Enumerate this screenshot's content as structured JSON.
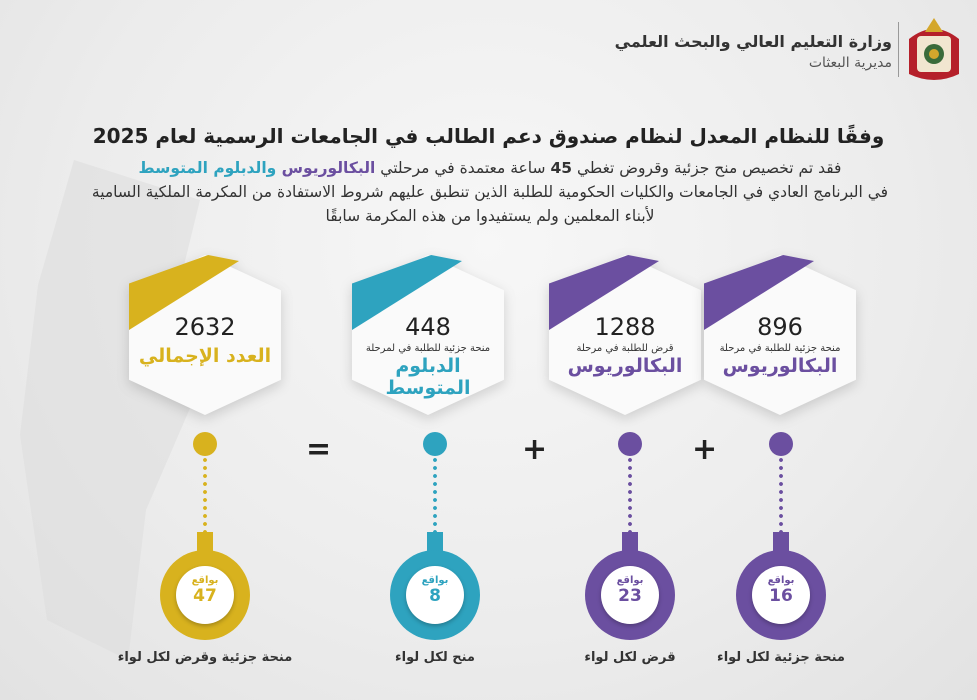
{
  "colors": {
    "gold": "#d8b21e",
    "teal": "#2ea3bf",
    "purple": "#6b4fa0"
  },
  "header": {
    "ministry": "وزارة التعليم العالي والبحث العلمي",
    "directorate": "مديرية البعثات",
    "logo": "Jordan coat of arms"
  },
  "title": "وفقًا للنظام المعدل لنظام صندوق دعم الطالب في الجامعات الرسمية لعام 2025",
  "paragraph": {
    "p1": "فقد تم تخصيص منح جزئية وقروض  تغطي ",
    "hours": "45",
    "p2": " ساعة معتمدة في مرحلتي ",
    "bach": "البكالوريوس",
    "p3": " والدبلوم  المتوسط",
    "line2": "في البرنامج العادي في الجامعات والكليات الحكومية للطلبة الذين تنطبق عليهم شروط الاستفادة من المكرمة الملكية السامية",
    "line3": "لأبناء المعلمين ولم يستفيدوا من هذه المكرمة سابقًا"
  },
  "cards": [
    {
      "number": "2632",
      "sub": "",
      "label": "العدد الإجمالي"
    },
    {
      "number": "448",
      "sub": "منحة جزئية للطلبة في لمرحلة",
      "label": "الدبلوم المتوسط"
    },
    {
      "number": "1288",
      "sub": "قرض للطلبة في مرحلة",
      "label": "البكالوريوس"
    },
    {
      "number": "896",
      "sub": "منحة جزئية للطلبة في مرحلة",
      "label": "البكالوريوس"
    }
  ],
  "operators": {
    "equals": "=",
    "plus": "+"
  },
  "pins": [
    {
      "prefix": "بواقع",
      "value": "47",
      "caption": "منحة جزئية وقرض لكل لواء"
    },
    {
      "prefix": "بواقع",
      "value": "8",
      "caption": "منح لكل لواء"
    },
    {
      "prefix": "بواقع",
      "value": "23",
      "caption": "قرض لكل لواء"
    },
    {
      "prefix": "بواقع",
      "value": "16",
      "caption": "منحة جزئية لكل لواء"
    }
  ]
}
